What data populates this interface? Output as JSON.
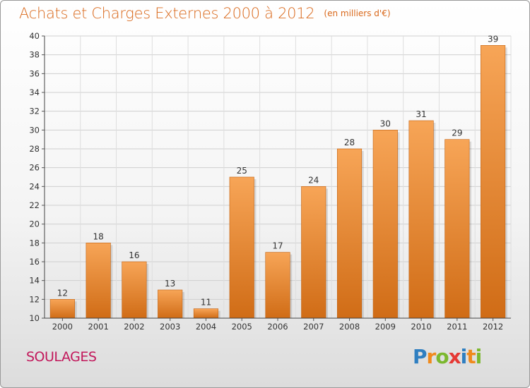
{
  "chart_data": {
    "type": "bar",
    "title": "Achats et Charges Externes 2000 à 2012",
    "unit": "(en milliers d'€)",
    "categories": [
      "2000",
      "2001",
      "2002",
      "2003",
      "2004",
      "2005",
      "2006",
      "2007",
      "2008",
      "2009",
      "2010",
      "2011",
      "2012"
    ],
    "values": [
      12,
      18,
      16,
      13,
      11,
      25,
      17,
      24,
      28,
      30,
      31,
      29,
      39
    ],
    "ylim": [
      10,
      40
    ],
    "yticks": [
      10,
      12,
      14,
      16,
      18,
      20,
      22,
      24,
      26,
      28,
      30,
      32,
      34,
      36,
      38,
      40
    ],
    "grid": true,
    "bar_color_top": "#f7a557",
    "bar_color_bottom": "#d06c16",
    "data_labels": true
  },
  "footer": {
    "commune": "SOULAGES",
    "brand_letters": [
      {
        "ch": "P",
        "color": "#2f7fc1"
      },
      {
        "ch": "r",
        "color": "#f08a1c"
      },
      {
        "ch": "o",
        "color": "#7cb82f"
      },
      {
        "ch": "x",
        "color": "#e53935"
      },
      {
        "ch": "i",
        "color": "#2f7fc1"
      },
      {
        "ch": "t",
        "color": "#f08a1c"
      },
      {
        "ch": "i",
        "color": "#7cb82f"
      }
    ]
  }
}
